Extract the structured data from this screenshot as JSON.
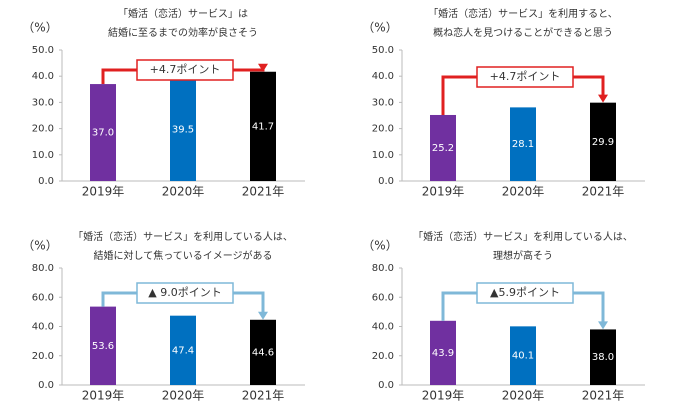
{
  "chart_data": [
    {
      "type": "bar",
      "title": [
        "「婚活（恋活）サービス」は",
        "結婚に至るまでの効率が良さそう"
      ],
      "y_label": "（%）",
      "categories": [
        "2019年",
        "2020年",
        "2021年"
      ],
      "values": [
        37.0,
        39.5,
        41.7
      ],
      "value_labels": [
        "37.0",
        "39.5",
        "41.7"
      ],
      "colors": [
        "#7030a0",
        "#0070c0",
        "#000000"
      ],
      "ylim": [
        0,
        50
      ],
      "yticks": [
        {
          "value": 0,
          "label": "0.0"
        },
        {
          "value": 10,
          "label": "10.0"
        },
        {
          "value": 20,
          "label": "20.0"
        },
        {
          "value": 30,
          "label": "30.0"
        },
        {
          "value": 40,
          "label": "40.0"
        },
        {
          "value": 50,
          "label": "50.0"
        }
      ],
      "annotation": "+4.7ポイント",
      "annotation_color": "#e02020"
    },
    {
      "type": "bar",
      "title": [
        "「婚活（恋活）サービス」を利用すると、",
        "概ね恋人を見つけることができると思う"
      ],
      "y_label": "（%）",
      "categories": [
        "2019年",
        "2020年",
        "2021年"
      ],
      "values": [
        25.2,
        28.1,
        29.9
      ],
      "value_labels": [
        "25.2",
        "28.1",
        "29.9"
      ],
      "colors": [
        "#7030a0",
        "#0070c0",
        "#000000"
      ],
      "ylim": [
        0,
        50
      ],
      "yticks": [
        {
          "value": 0,
          "label": "0.0"
        },
        {
          "value": 10,
          "label": "10.0"
        },
        {
          "value": 20,
          "label": "20.0"
        },
        {
          "value": 30,
          "label": "30.0"
        },
        {
          "value": 40,
          "label": "40.0"
        },
        {
          "value": 50,
          "label": "50.0"
        }
      ],
      "annotation": "+4.7ポイント",
      "annotation_color": "#e02020"
    },
    {
      "type": "bar",
      "title": [
        "「婚活（恋活）サービス」を利用している人は、",
        "結婚に対して焦っているイメージがある"
      ],
      "y_label": "（%）",
      "categories": [
        "2019年",
        "2020年",
        "2021年"
      ],
      "values": [
        53.6,
        47.4,
        44.6
      ],
      "value_labels": [
        "53.6",
        "47.4",
        "44.6"
      ],
      "colors": [
        "#7030a0",
        "#0070c0",
        "#000000"
      ],
      "ylim": [
        0,
        80
      ],
      "yticks": [
        {
          "value": 0,
          "label": "0.0"
        },
        {
          "value": 20,
          "label": "20.0"
        },
        {
          "value": 40,
          "label": "40.0"
        },
        {
          "value": 60,
          "label": "60.0"
        },
        {
          "value": 80,
          "label": "80.0"
        }
      ],
      "annotation": "▲ 9.0ポイント",
      "annotation_color": "#7fb8d8"
    },
    {
      "type": "bar",
      "title": [
        "「婚活（恋活）サービス」を利用している人は、",
        "理想が高そう"
      ],
      "y_label": "（%）",
      "categories": [
        "2019年",
        "2020年",
        "2021年"
      ],
      "values": [
        43.9,
        40.1,
        38.0
      ],
      "value_labels": [
        "43.9",
        "40.1",
        "38.0"
      ],
      "colors": [
        "#7030a0",
        "#0070c0",
        "#000000"
      ],
      "ylim": [
        0,
        80
      ],
      "yticks": [
        {
          "value": 0,
          "label": "0.0"
        },
        {
          "value": 20,
          "label": "20.0"
        },
        {
          "value": 40,
          "label": "40.0"
        },
        {
          "value": 60,
          "label": "60.0"
        },
        {
          "value": 80,
          "label": "80.0"
        }
      ],
      "annotation": "▲5.9ポイント",
      "annotation_color": "#7fb8d8"
    }
  ]
}
